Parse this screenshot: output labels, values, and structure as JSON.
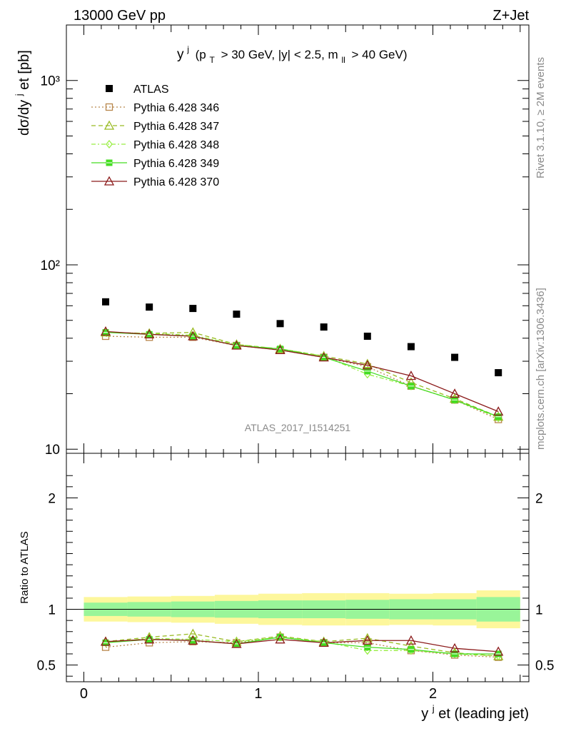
{
  "header": {
    "left": "13000 GeV pp",
    "right": "Z+Jet"
  },
  "side_labels": {
    "rivet": "Rivet 3.1.10, ≥ 2M events",
    "mcplots": "mcplots.cern.ch [arXiv:1306.3436]"
  },
  "main_title": {
    "y": "y",
    "sup_j": "j",
    "cuts_1": "(p",
    "sub_T": "T",
    "cuts_2": "> 30 GeV, |y| < 2.5, m",
    "sub_ll": "ll",
    "cuts_3": "> 40 GeV)"
  },
  "watermark": "ATLAS_2017_I1514251",
  "ylabel_top": "dσ/dy",
  "ylabel_sup": "j",
  "ylabel_end": "et [pb]",
  "ylabel_bottom": "Ratio to ATLAS",
  "xlabel_y": "y",
  "xlabel_sup": "j",
  "xlabel_end": "et (leading jet)",
  "colors": {
    "atlas": "#000000",
    "p346": "#b8864b",
    "p347": "#99bb22",
    "p348": "#99ee44",
    "p349": "#44dd22",
    "p370": "#8b1a1a",
    "band_inner": "#99f599",
    "band_outer": "#fdf79c"
  },
  "chart_data": {
    "type": "scatter",
    "x_bins": [
      [
        0,
        0.25
      ],
      [
        0.25,
        0.5
      ],
      [
        0.5,
        0.75
      ],
      [
        0.75,
        1.0
      ],
      [
        1.0,
        1.25
      ],
      [
        1.25,
        1.5
      ],
      [
        1.5,
        1.75
      ],
      [
        1.75,
        2.0
      ],
      [
        2.0,
        2.25
      ],
      [
        2.25,
        2.5
      ]
    ],
    "x": [
      0.125,
      0.375,
      0.625,
      0.875,
      1.125,
      1.375,
      1.625,
      1.875,
      2.125,
      2.375
    ],
    "xlim": [
      -0.1,
      2.55
    ],
    "xticks": [
      0,
      1,
      2
    ],
    "ylim_top": [
      9.5,
      2000
    ],
    "yscale_top": "log",
    "yticks_top": [
      "10",
      "10²",
      "10³"
    ],
    "ylim_ratio": [
      0.35,
      2.4
    ],
    "yticks_ratio": [
      0.5,
      1,
      2
    ],
    "legend_placement": "top-left",
    "series": [
      {
        "name": "ATLAS",
        "marker": "filled-square",
        "style": "none",
        "values": [
          63,
          59,
          58,
          54,
          48,
          46,
          41,
          36,
          31.5,
          26
        ],
        "ratio": [
          1,
          1,
          1,
          1,
          1,
          1,
          1,
          1,
          1,
          1
        ]
      },
      {
        "name": "Pythia 6.428 346",
        "marker": "open-square",
        "style": "dotted",
        "values": [
          41,
          40.5,
          40.5,
          36.5,
          34.5,
          31.5,
          28,
          22,
          18.5,
          14.5
        ],
        "ratio": [
          0.66,
          0.7,
          0.71,
          0.7,
          0.75,
          0.7,
          0.7,
          0.63,
          0.59,
          0.57
        ]
      },
      {
        "name": "Pythia 6.428 347",
        "marker": "open-triangle",
        "style": "dashed",
        "values": [
          43,
          42.5,
          43,
          37,
          35,
          32,
          29,
          23,
          18.8,
          15
        ],
        "ratio": [
          0.71,
          0.75,
          0.78,
          0.71,
          0.76,
          0.71,
          0.74,
          0.67,
          0.61,
          0.58
        ]
      },
      {
        "name": "Pythia 6.428 348",
        "marker": "open-diamond",
        "style": "dashdot",
        "values": [
          43,
          42.5,
          41.5,
          37,
          35,
          32,
          25.5,
          22,
          18.5,
          14.8
        ],
        "ratio": [
          0.7,
          0.74,
          0.73,
          0.71,
          0.75,
          0.71,
          0.63,
          0.63,
          0.6,
          0.58
        ]
      },
      {
        "name": "Pythia 6.428 349",
        "marker": "crossed-square",
        "style": "solid",
        "values": [
          43,
          42,
          41,
          36.5,
          35,
          31.5,
          26.5,
          22,
          18.5,
          15
        ],
        "ratio": [
          0.7,
          0.73,
          0.72,
          0.69,
          0.75,
          0.7,
          0.66,
          0.64,
          0.6,
          0.6
        ]
      },
      {
        "name": "Pythia 6.428 370",
        "marker": "open-triangle",
        "style": "solid",
        "values": [
          43.5,
          42,
          41,
          36.5,
          34.5,
          31.5,
          28.5,
          25,
          20,
          16
        ],
        "ratio": [
          0.71,
          0.73,
          0.72,
          0.69,
          0.73,
          0.7,
          0.72,
          0.72,
          0.65,
          0.62
        ]
      }
    ],
    "ratio_band": {
      "inner_half_width": [
        0.06,
        0.065,
        0.07,
        0.075,
        0.08,
        0.08,
        0.085,
        0.09,
        0.09,
        0.11
      ],
      "outer_half_width": [
        0.11,
        0.115,
        0.12,
        0.13,
        0.14,
        0.145,
        0.145,
        0.14,
        0.145,
        0.17
      ]
    }
  }
}
